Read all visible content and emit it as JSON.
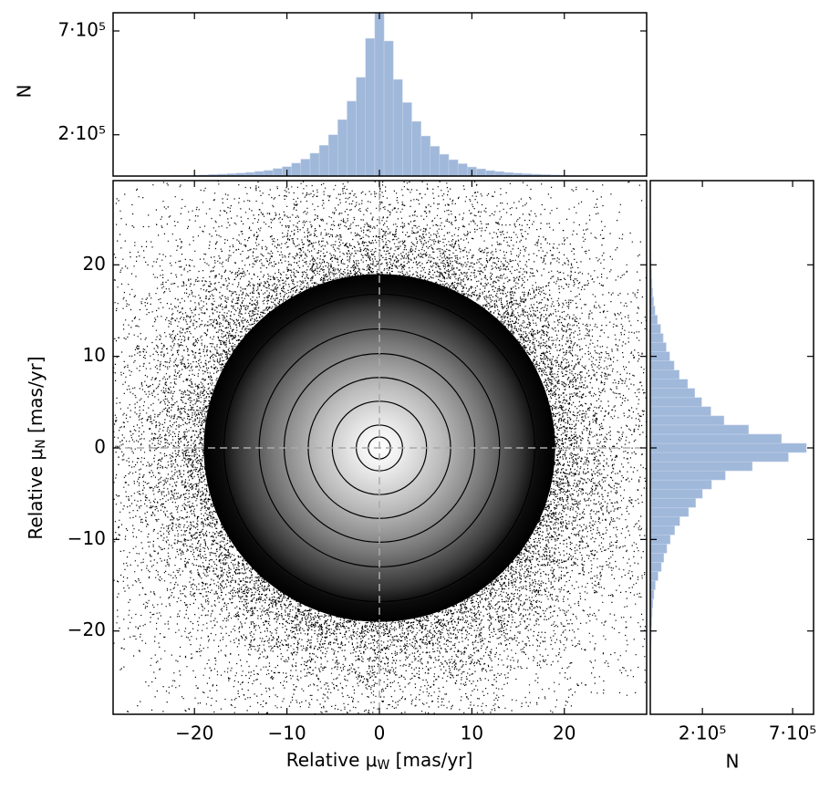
{
  "chart_data": [
    {
      "type": "density",
      "xlabel": {
        "text": "Relative μ",
        "sub": "W",
        "unit": " [mas/yr]"
      },
      "ylabel": {
        "text": "Relative μ",
        "sub": "N",
        "unit": " [mas/yr]"
      },
      "xlim": [
        -28.8,
        28.9
      ],
      "ylim": [
        -29.1,
        29.2
      ],
      "xticks": [
        {
          "value": -20,
          "label": "−20"
        },
        {
          "value": -10,
          "label": "−10"
        },
        0,
        10,
        20
      ],
      "yticks": [
        {
          "value": -20,
          "label": "−20"
        },
        {
          "value": -10,
          "label": "−10"
        },
        0,
        10,
        20
      ],
      "density_radius": 19,
      "contour_radii": [
        1.2,
        2.5,
        5.1,
        7.7,
        10.3,
        13,
        16.8
      ],
      "contour_color": "#000000",
      "reference_lines": {
        "x": 0,
        "y": 0,
        "color": "#aaaaaa"
      }
    },
    {
      "type": "histogram",
      "orientation": "vertical",
      "ylabel": "N",
      "yscale": "log",
      "color": "#a0b8da",
      "bins": [
        -28.5,
        -27.5,
        -26.5,
        -25.5,
        -24.5,
        -23.5,
        -22.5,
        -21.5,
        -20.5,
        -19.5,
        -18.5,
        -17.5,
        -16.5,
        -15.5,
        -14.5,
        -13.5,
        -12.5,
        -11.5,
        -10.5,
        -9.5,
        -8.5,
        -7.5,
        -6.5,
        -5.5,
        -4.5,
        -3.5,
        -2.5,
        -1.5,
        -0.5,
        0.5,
        1.5,
        2.5,
        3.5,
        4.5,
        5.5,
        6.5,
        7.5,
        8.5,
        9.5,
        10.5,
        11.5,
        12.5,
        13.5,
        14.5,
        15.5,
        16.5,
        17.5,
        18.5,
        19.5,
        20.5,
        21.5,
        22.5,
        23.5,
        24.5,
        25.5,
        26.5,
        27.5,
        28.5
      ],
      "values": [
        121600,
        121700,
        121800,
        121900,
        122000,
        122100,
        122300,
        122500,
        122800,
        123200,
        123700,
        124300,
        125000,
        126000,
        127000,
        128500,
        130000,
        133000,
        136000,
        142000,
        149000,
        160000,
        176000,
        200000,
        240000,
        300000,
        400000,
        640000,
        900000,
        620000,
        390000,
        295000,
        235000,
        197000,
        174000,
        158000,
        148000,
        141000,
        135500,
        132500,
        129800,
        128300,
        126800,
        125800,
        124900,
        124200,
        123600,
        123100,
        122700,
        122400,
        122200,
        122000,
        121900,
        121800,
        121700,
        121600,
        121500
      ],
      "xlim": [
        -28.8,
        28.9
      ],
      "xticks": [
        -20,
        -10,
        0,
        10,
        20
      ],
      "ylim": [
        121500,
        872000
      ],
      "yticks": [
        {
          "value": 200000,
          "label": "2·10⁵"
        },
        {
          "value": 700000,
          "label": "7·10⁵"
        }
      ]
    },
    {
      "type": "histogram",
      "orientation": "horizontal",
      "xlabel": "N",
      "xscale": "log",
      "color": "#a0b8da",
      "bins": [
        -28.5,
        -27.5,
        -26.5,
        -25.5,
        -24.5,
        -23.5,
        -22.5,
        -21.5,
        -20.5,
        -19.5,
        -18.5,
        -17.5,
        -16.5,
        -15.5,
        -14.5,
        -13.5,
        -12.5,
        -11.5,
        -10.5,
        -9.5,
        -8.5,
        -7.5,
        -6.5,
        -5.5,
        -4.5,
        -3.5,
        -2.5,
        -1.5,
        -0.5,
        0.5,
        1.5,
        2.5,
        3.5,
        4.5,
        5.5,
        6.5,
        7.5,
        8.5,
        9.5,
        10.5,
        11.5,
        12.5,
        13.5,
        14.5,
        15.5,
        16.5,
        17.5,
        18.5,
        19.5,
        20.5,
        21.5,
        22.5,
        23.5,
        24.5,
        25.5,
        26.5,
        27.5,
        28.5
      ],
      "values": [
        97200,
        97300,
        97400,
        97500,
        97600,
        97800,
        98000,
        98300,
        98600,
        99000,
        99500,
        100500,
        102000,
        104000,
        108000,
        113000,
        117000,
        122000,
        128000,
        136000,
        146000,
        165000,
        182000,
        200000,
        227000,
        275000,
        400000,
        660000,
        847000,
        600000,
        380000,
        270000,
        225000,
        198000,
        180000,
        163000,
        145000,
        135000,
        127000,
        121000,
        116000,
        112000,
        107000,
        103500,
        101500,
        100200,
        99300,
        98800,
        98400,
        98100,
        97900,
        97700,
        97500,
        97400,
        97300,
        97200,
        97100
      ],
      "ylim": [
        -29.1,
        29.2
      ],
      "yticks": [
        -20,
        -10,
        0,
        10,
        20
      ],
      "xlim": [
        97000,
        936000
      ],
      "xticks": [
        {
          "value": 200000,
          "label": "2·10⁵"
        },
        {
          "value": 700000,
          "label": "7·10⁵"
        }
      ]
    }
  ]
}
